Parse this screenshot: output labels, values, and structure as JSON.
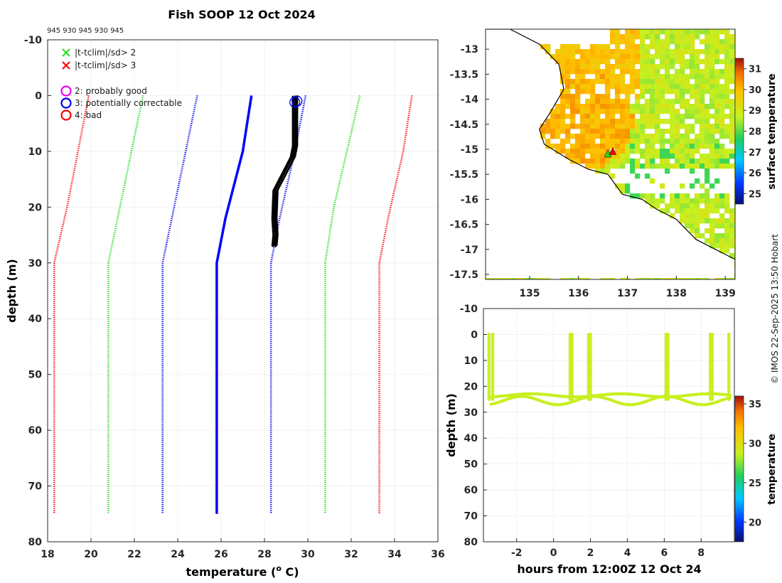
{
  "title": "Fish SOOP 12 Oct 2024",
  "flags_text": "945 930 945 930 945",
  "credit": "© IMOS 22-Sep-2025 13:50 Hobart",
  "colors": {
    "red": "#ff0000",
    "green": "#22dd22",
    "blue": "#0000ee",
    "profile_blue": "#0000ff",
    "black": "#000000",
    "magenta": "#ee00ee",
    "section": "#c8f020"
  },
  "chart_data": [
    {
      "id": "profile",
      "type": "line",
      "title": "Fish SOOP 12 Oct 2024",
      "xlabel": "temperature (",
      "xlabel_sup": "o",
      "xlabel_end": " C)",
      "ylabel": "depth (m)",
      "xlim": [
        18,
        36
      ],
      "ylim": [
        -10,
        80
      ],
      "y_reversed": true,
      "grid": true,
      "xticks": [
        18,
        20,
        22,
        24,
        26,
        28,
        30,
        32,
        34,
        36
      ],
      "yticks": [
        -10,
        0,
        10,
        20,
        30,
        40,
        50,
        60,
        70,
        80
      ],
      "legend": [
        {
          "marker": "x",
          "color": "#22dd22",
          "label": "|t-tclim|/sd> 2"
        },
        {
          "marker": "x",
          "color": "#ff0000",
          "label": "|t-tclim|/sd> 3"
        },
        {
          "marker": "o",
          "color": "#ee00ee",
          "label": "2: probably good"
        },
        {
          "marker": "o",
          "color": "#0000ee",
          "label": "3: potentially correctable"
        },
        {
          "marker": "o",
          "color": "#ff0000",
          "label": "4: bad"
        }
      ],
      "series": [
        {
          "name": "clim_minus_3sd",
          "style": "dotted",
          "color": "#ff0000",
          "x": [
            19.9,
            18.9,
            18.3,
            18.3
          ],
          "y": [
            0,
            20,
            30,
            75
          ]
        },
        {
          "name": "clim_minus_2sd",
          "style": "dotted",
          "color": "#22dd22",
          "x": [
            22.4,
            21.6,
            20.8,
            20.8
          ],
          "y": [
            0,
            15,
            30,
            75
          ]
        },
        {
          "name": "clim_minus_1sd",
          "style": "dotted",
          "color": "#0000ee",
          "x": [
            24.9,
            24.1,
            23.3,
            23.3
          ],
          "y": [
            0,
            15,
            30,
            75
          ]
        },
        {
          "name": "climatology_mean",
          "style": "solid",
          "color": "#0000ff",
          "x": [
            27.4,
            27.0,
            26.2,
            25.8,
            25.8
          ],
          "y": [
            0,
            10,
            22,
            30,
            75
          ]
        },
        {
          "name": "clim_plus_1sd",
          "style": "dotted",
          "color": "#0000ee",
          "x": [
            29.9,
            29.4,
            28.7,
            28.3,
            28.3
          ],
          "y": [
            0,
            10,
            22,
            30,
            75
          ]
        },
        {
          "name": "clim_plus_2sd",
          "style": "dotted",
          "color": "#22dd22",
          "x": [
            32.4,
            31.8,
            31.2,
            30.8,
            30.8
          ],
          "y": [
            0,
            10,
            20,
            30,
            75
          ]
        },
        {
          "name": "clim_plus_3sd",
          "style": "dotted",
          "color": "#ff0000",
          "x": [
            34.8,
            34.4,
            33.7,
            33.3,
            33.3
          ],
          "y": [
            0,
            10,
            22,
            30,
            75
          ]
        },
        {
          "name": "observed_profiles",
          "style": "solid",
          "color": "#000000",
          "x": [
            29.4,
            29.4,
            29.4,
            29.3,
            28.9,
            28.5,
            28.45,
            28.5,
            28.45
          ],
          "y": [
            0,
            5,
            9,
            11,
            14,
            17,
            22,
            25,
            27
          ]
        }
      ],
      "flag_markers": [
        {
          "x": 29.4,
          "y": 1.2,
          "color": "#0000ee"
        },
        {
          "x": 29.5,
          "y": 1.0,
          "color": "#0000ee"
        }
      ]
    },
    {
      "id": "map",
      "type": "heatmap",
      "xlim": [
        134.1,
        139.2
      ],
      "ylim": [
        -17.6,
        -12.6
      ],
      "xticks": [
        135,
        136,
        137,
        138,
        139
      ],
      "yticks": [
        -13,
        -13.5,
        -14,
        -14.5,
        -15,
        -15.5,
        -16,
        -16.5,
        -17,
        -17.5
      ],
      "colorbar": {
        "label": "surface temperature",
        "range": [
          24.5,
          31.5
        ],
        "ticks": [
          25,
          26,
          27,
          28,
          29,
          30,
          31
        ]
      },
      "markers": [
        {
          "lon": 136.6,
          "lat": -15.1,
          "color": "#22dd22"
        },
        {
          "lon": 136.7,
          "lat": -15.05,
          "color": "#ff0000"
        }
      ]
    },
    {
      "id": "section",
      "type": "scatter",
      "xlabel": "hours from 12:00Z 12 Oct 24",
      "ylabel": "depth (m)",
      "xlim": [
        -3.8,
        9.8
      ],
      "ylim": [
        -10,
        80
      ],
      "y_reversed": true,
      "xticks": [
        -2,
        0,
        2,
        4,
        6,
        8
      ],
      "yticks": [
        -10,
        0,
        10,
        20,
        30,
        40,
        50,
        60,
        70,
        80
      ],
      "colorbar": {
        "label": "temperature",
        "range": [
          17.5,
          36
        ],
        "ticks": [
          20,
          25,
          30,
          35
        ]
      },
      "casts": [
        {
          "t_down": -3.5,
          "t_up": -3.3
        },
        {
          "t_down": 0.9,
          "t_up": 1.0
        },
        {
          "t_down": 1.9,
          "t_up": 2.0
        },
        {
          "t_down": 6.1,
          "t_up": 6.2
        },
        {
          "t_down": 8.5,
          "t_up": 8.6
        },
        {
          "t_down": 9.5,
          "t_up": 9.5
        }
      ]
    }
  ]
}
